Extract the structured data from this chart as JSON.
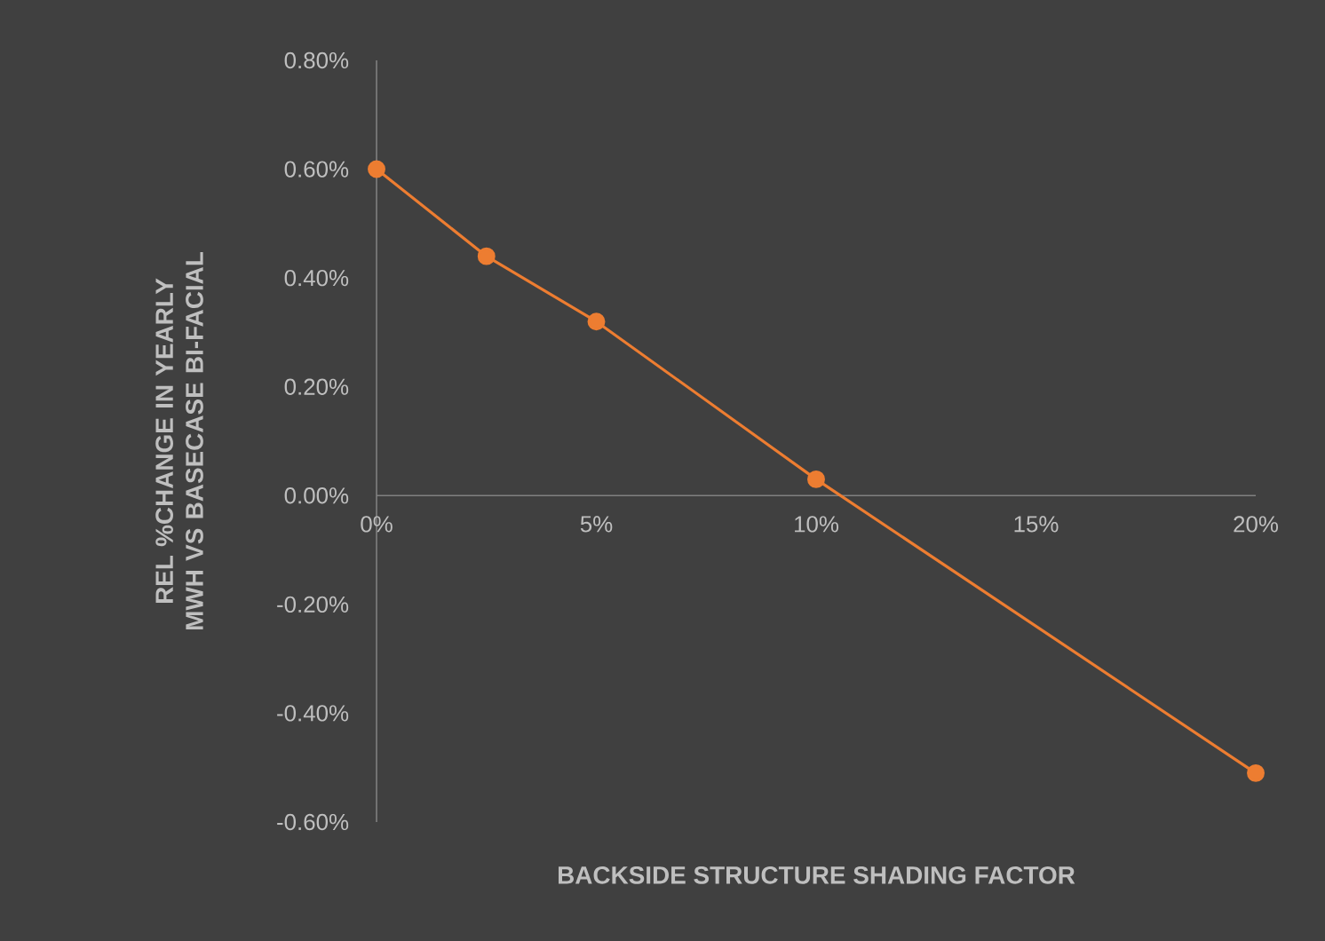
{
  "chart_data": {
    "type": "line",
    "xlabel": "BACKSIDE STRUCTURE SHADING FACTOR",
    "ylabel": "REL %CHANGE IN YEARLY MWH VS BASECASE BI-FACIAL",
    "x": [
      0,
      2.5,
      5,
      10,
      20
    ],
    "series": [
      {
        "color": "#ed7d31",
        "values": [
          0.6,
          0.44,
          0.32,
          0.03,
          -0.51
        ]
      }
    ],
    "xlim": [
      0,
      20
    ],
    "xticks": [
      {
        "value": 0,
        "label": "0%"
      },
      {
        "value": 5,
        "label": "5%"
      },
      {
        "value": 10,
        "label": "10%"
      },
      {
        "value": 15,
        "label": "15%"
      },
      {
        "value": 20,
        "label": "20%"
      }
    ],
    "ylim": [
      -0.6,
      0.8
    ],
    "yticks": [
      {
        "value": -0.6,
        "label": "-0.60%"
      },
      {
        "value": -0.4,
        "label": "-0.40%"
      },
      {
        "value": -0.2,
        "label": "-0.20%"
      },
      {
        "value": 0,
        "label": "0.00%"
      },
      {
        "value": 0.2,
        "label": "0.20%"
      },
      {
        "value": 0.4,
        "label": "0.40%"
      },
      {
        "value": 0.6,
        "label": "0.60%"
      },
      {
        "value": 0.8,
        "label": "0.80%"
      }
    ],
    "marker": "circle",
    "line_style": "solid"
  }
}
